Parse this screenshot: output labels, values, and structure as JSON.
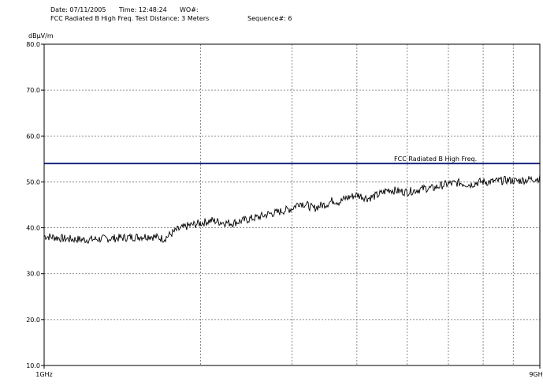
{
  "header": {
    "date_label": "Date: 07/11/2005",
    "time_label": "Time: 12:48:24",
    "wo_label": "WO#:",
    "test_label": "FCC Radiated B High Freq. Test Distance: 3 Meters",
    "sequence_label": "Sequence#: 6"
  },
  "colors": {
    "trace": "#000000",
    "limit_line": "#1a237e",
    "grid": "#6e6e6e"
  },
  "chart_data": {
    "type": "line",
    "title": "",
    "xlabel": "",
    "ylabel": "dBµV/m",
    "x_scale": "log",
    "xlim": [
      1,
      9
    ],
    "ylim": [
      10,
      80
    ],
    "y_ticks": [
      {
        "value": 80,
        "label": "80.0"
      },
      {
        "value": 70,
        "label": "70.0"
      },
      {
        "value": 60,
        "label": "60.0"
      },
      {
        "value": 50,
        "label": "50.0"
      },
      {
        "value": 40,
        "label": "40.0"
      },
      {
        "value": 30,
        "label": "30.0"
      },
      {
        "value": 20,
        "label": "20.0"
      },
      {
        "value": 10,
        "label": "10.0"
      }
    ],
    "x_ticks": [
      {
        "value": 1,
        "label": "1GHz"
      },
      {
        "value": 9,
        "label": "9GH"
      }
    ],
    "x_grid": [
      2,
      3,
      4,
      5,
      6,
      7,
      8
    ],
    "grid": true,
    "limit_line": {
      "name": "FCC Radiated B High Freq.",
      "y": 54
    },
    "series": [
      {
        "x": [
          1.0,
          1.1,
          1.2,
          1.3,
          1.4,
          1.5,
          1.6,
          1.7,
          1.8,
          1.9,
          2.0,
          2.1,
          2.2,
          2.3,
          2.4,
          2.5,
          2.6,
          2.7,
          2.8,
          2.9,
          3.0,
          3.1,
          3.2,
          3.3,
          3.4,
          3.5,
          3.6,
          3.7,
          3.8,
          3.9,
          4.0,
          4.2,
          4.4,
          4.6,
          4.8,
          5.0,
          5.2,
          5.4,
          5.6,
          5.8,
          6.0,
          6.3,
          6.6,
          6.9,
          7.2,
          7.5,
          7.8,
          8.1,
          8.4,
          8.7,
          9.0
        ],
        "values": [
          38.2,
          37.6,
          37.4,
          37.6,
          37.8,
          38.0,
          38.2,
          37.6,
          39.5,
          40.5,
          41.0,
          41.6,
          41.2,
          41.0,
          41.5,
          42.0,
          42.4,
          43.0,
          43.3,
          43.8,
          44.2,
          45.5,
          45.0,
          44.2,
          44.8,
          45.2,
          46.0,
          45.6,
          46.4,
          46.8,
          47.2,
          46.4,
          47.2,
          48.3,
          48.0,
          47.8,
          48.2,
          48.6,
          48.6,
          49.2,
          49.6,
          49.8,
          49.4,
          50.0,
          50.0,
          50.2,
          50.4,
          50.2,
          50.4,
          50.6,
          50.8
        ]
      }
    ]
  }
}
